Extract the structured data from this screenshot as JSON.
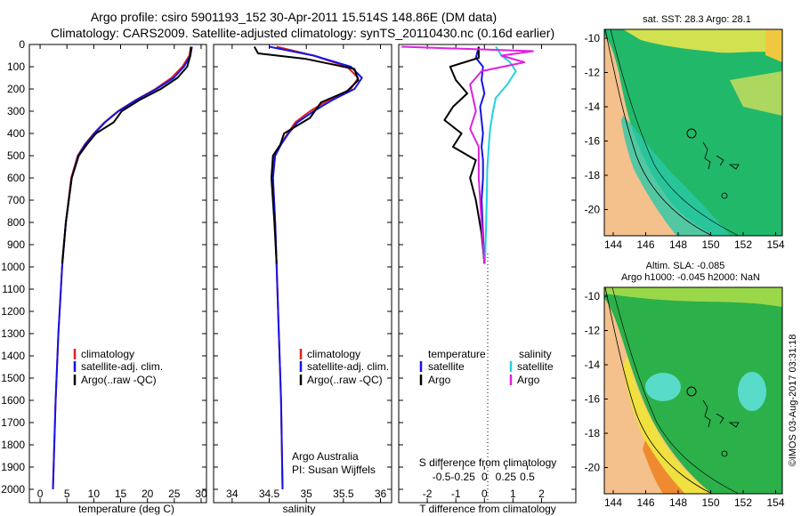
{
  "header": {
    "line1": "Argo profile: csiro 5901193_152 30-Apr-2011 15.514S 148.86E (DM data)",
    "line2": "Climatology: CARS2009. Satellite-adjusted climatology: synTS_20110430.nc (0.16d earlier)"
  },
  "colors": {
    "climatology": "#e02020",
    "satellite": "#1414e6",
    "argo": "#000000",
    "sal_sat": "#22d0e0",
    "sal_argo": "#e020e0"
  },
  "depth_ticks": [
    0,
    100,
    200,
    300,
    400,
    500,
    600,
    700,
    800,
    900,
    1000,
    1100,
    1200,
    1300,
    1400,
    1500,
    1600,
    1700,
    1800,
    1900,
    2000
  ],
  "chart_data": [
    {
      "type": "line",
      "title": "",
      "xlabel": "temperature (deg C)",
      "ylabel": "",
      "xlim": [
        -2,
        31
      ],
      "ylim": [
        0,
        2060
      ],
      "xticks": [
        0,
        5,
        10,
        15,
        20,
        25,
        30
      ],
      "legend": [
        "climatology",
        "satellite-adj. clim.",
        "Argo(..raw -QC)"
      ],
      "series": [
        {
          "name": "climatology",
          "x": [
            28.1,
            27.8,
            26.5,
            24.5,
            21.5,
            17.8,
            14.5,
            12.0,
            10.0,
            8.3,
            7.0,
            5.8,
            4.8,
            4.1,
            3.4,
            2.9,
            2.4
          ],
          "y": [
            10,
            50,
            100,
            150,
            200,
            250,
            300,
            350,
            400,
            450,
            500,
            600,
            800,
            1000,
            1300,
            1600,
            2000
          ]
        },
        {
          "name": "satellite-adj. clim.",
          "x": [
            28.3,
            28.0,
            26.8,
            24.9,
            21.7,
            17.9,
            14.6,
            12.1,
            10.1,
            8.4,
            7.1,
            5.9,
            4.8,
            4.1,
            3.4,
            2.9,
            2.4
          ],
          "y": [
            10,
            50,
            100,
            150,
            200,
            250,
            300,
            350,
            400,
            450,
            500,
            600,
            800,
            1000,
            1300,
            1600,
            2000
          ]
        },
        {
          "name": "Argo(..raw -QC)",
          "x": [
            28.1,
            28.0,
            27.4,
            25.6,
            22.5,
            18.5,
            15.2,
            13.7,
            10.4,
            8.7,
            7.2,
            5.9,
            4.8,
            4.1
          ],
          "y": [
            10,
            50,
            100,
            150,
            200,
            250,
            300,
            350,
            400,
            450,
            500,
            600,
            800,
            985
          ]
        }
      ]
    },
    {
      "type": "line",
      "xlabel": "salinity",
      "xlim": [
        33.75,
        36.15
      ],
      "ylim": [
        0,
        2060
      ],
      "xticks": [
        34,
        34.5,
        35,
        35.5,
        36
      ],
      "legend": [
        "climatology",
        "satellite-adj. clim.",
        "Argo(..raw -QC)"
      ],
      "annotation": [
        "Argo Australia",
        "PI: Susan Wijffels"
      ],
      "series": [
        {
          "name": "climatology",
          "x": [
            34.6,
            35.1,
            35.55,
            35.7,
            35.6,
            35.3,
            35.05,
            34.85,
            34.75,
            34.65,
            34.57,
            34.55,
            34.58,
            34.62,
            34.66,
            34.68
          ],
          "y": [
            10,
            50,
            100,
            150,
            200,
            250,
            300,
            350,
            400,
            450,
            500,
            600,
            800,
            1200,
            1600,
            2000
          ]
        },
        {
          "name": "satellite-adj. clim.",
          "x": [
            34.5,
            35.1,
            35.6,
            35.75,
            35.65,
            35.35,
            35.1,
            34.88,
            34.76,
            34.66,
            34.58,
            34.55,
            34.58,
            34.62,
            34.66,
            34.68
          ],
          "y": [
            10,
            50,
            100,
            150,
            200,
            250,
            300,
            350,
            400,
            450,
            500,
            600,
            800,
            1200,
            1600,
            2000
          ]
        },
        {
          "name": "Argo(..raw -QC)",
          "x": [
            34.3,
            34.35,
            35.0,
            35.65,
            35.7,
            35.55,
            35.2,
            35.05,
            34.7,
            34.65,
            34.55,
            34.53,
            34.57,
            34.6
          ],
          "y": [
            10,
            40,
            65,
            110,
            160,
            210,
            260,
            330,
            400,
            450,
            500,
            600,
            800,
            985
          ]
        }
      ]
    },
    {
      "type": "line",
      "xlabel": "T difference from climatology",
      "xlabel_top": "S difference from climatology",
      "xlim": [
        -3,
        3.2
      ],
      "ylim": [
        0,
        2060
      ],
      "xticks": [
        -2,
        -1,
        0,
        1,
        2
      ],
      "xticks_top": [
        "-0.5",
        "-0.25",
        "0",
        "0.25",
        "0.5"
      ],
      "legend": {
        "temperature": [
          "satellite",
          "Argo"
        ],
        "salinity": [
          "satellite",
          "Argo"
        ]
      },
      "legend_headers": [
        "temperature",
        "salinity"
      ],
      "series": [
        {
          "name": "T satellite",
          "x": [
            -0.2,
            -0.3,
            -0.05,
            -0.1,
            0.0,
            -0.15,
            -0.1,
            -0.05,
            -0.1,
            -0.05,
            -0.05,
            -0.1,
            -0.05,
            0.0
          ],
          "y": [
            10,
            60,
            100,
            160,
            220,
            280,
            340,
            400,
            460,
            520,
            600,
            700,
            850,
            985
          ]
        },
        {
          "name": "T Argo",
          "x": [
            -0.2,
            -0.2,
            -1.2,
            -1.0,
            -0.6,
            -1.1,
            -1.4,
            -0.8,
            -1.1,
            -0.3,
            -0.5,
            -0.3,
            -0.1,
            0.0
          ],
          "y": [
            10,
            60,
            100,
            160,
            220,
            280,
            340,
            400,
            460,
            520,
            600,
            700,
            850,
            985
          ]
        },
        {
          "name": "S satellite",
          "x": [
            0.4,
            0.6,
            0.9,
            1.1,
            0.8,
            0.4,
            0.3,
            0.2,
            0.15,
            0.1,
            0.08,
            0.05,
            0.02
          ],
          "y": [
            10,
            50,
            80,
            120,
            180,
            240,
            300,
            380,
            460,
            560,
            700,
            850,
            985
          ]
        },
        {
          "name": "S Argo",
          "x": [
            -2.9,
            1.7,
            0.6,
            1.4,
            -0.1,
            -0.5,
            -0.4,
            -0.3,
            -0.5,
            -0.2,
            -0.2,
            -0.1,
            0.0
          ],
          "y": [
            10,
            30,
            50,
            80,
            120,
            180,
            240,
            300,
            380,
            460,
            600,
            800,
            985
          ]
        }
      ]
    }
  ],
  "map_top": {
    "title": "sat. SST: 28.3 Argo: 28.1",
    "xticks": [
      "144",
      "146",
      "148",
      "150",
      "152",
      "154"
    ],
    "yticks": [
      "-10",
      "-12",
      "-14",
      "-16",
      "-18",
      "-20"
    ]
  },
  "map_bottom": {
    "title1": "Altim. SLA: -0.085",
    "title2": "Argo h1000: -0.045 h2000: NaN",
    "xticks": [
      "144",
      "146",
      "148",
      "150",
      "152",
      "154"
    ],
    "yticks": [
      "-10",
      "-12",
      "-14",
      "-16",
      "-18",
      "-20"
    ]
  },
  "credit": "©IMOS 03-Aug-2017 03:31:18"
}
